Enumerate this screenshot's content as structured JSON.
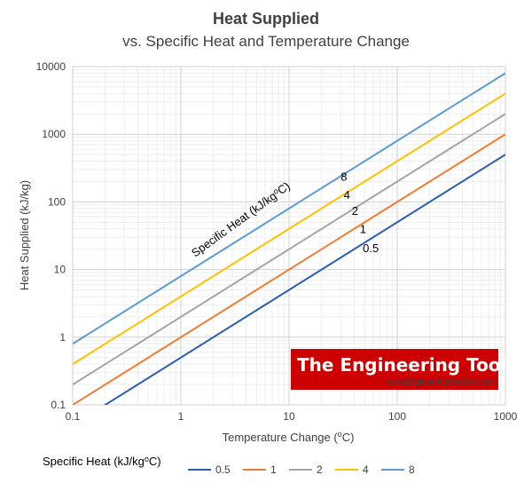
{
  "chart_data": {
    "type": "line",
    "title": "Heat Supplied",
    "subtitle": "vs. Specific Heat and Temperature Change",
    "xlabel": "Temperature Change (",
    "xlabel_unit": "C)",
    "ylabel": "Heat Supplied (kJ/kg)",
    "xscale": "log",
    "yscale": "log",
    "xlim": [
      0.1,
      1000
    ],
    "ylim": [
      0.1,
      10000
    ],
    "grid": true,
    "x_ticks": [
      0.1,
      1,
      10,
      100,
      1000
    ],
    "x_tick_labels": [
      "0.1",
      "1",
      "10",
      "100",
      "1000"
    ],
    "y_ticks": [
      0.1,
      1,
      10,
      100,
      1000,
      10000
    ],
    "y_tick_labels": [
      "0.1",
      "1",
      "10",
      "100",
      "1000",
      "10000"
    ],
    "series": [
      {
        "name": "0.5",
        "color": "#2a5fb0",
        "points": [
          [
            0.1,
            0.05
          ],
          [
            1000,
            500
          ]
        ]
      },
      {
        "name": "1",
        "color": "#ec7d31",
        "points": [
          [
            0.1,
            0.1
          ],
          [
            1000,
            1000
          ]
        ]
      },
      {
        "name": "2",
        "color": "#a5a5a5",
        "points": [
          [
            0.1,
            0.2
          ],
          [
            1000,
            2000
          ]
        ]
      },
      {
        "name": "4",
        "color": "#ffc000",
        "points": [
          [
            0.1,
            0.4
          ],
          [
            1000,
            4000
          ]
        ]
      },
      {
        "name": "8",
        "color": "#5b9bd5",
        "points": [
          [
            0.1,
            0.8
          ],
          [
            1000,
            8000
          ]
        ]
      }
    ],
    "annotation_title": "Specific Heat (kJ/kg",
    "annotation_title_unit": "C)",
    "annotations": [
      {
        "text": "8",
        "x": 30,
        "y": 240
      },
      {
        "text": "4",
        "x": 32,
        "y": 128
      },
      {
        "text": "2",
        "x": 38,
        "y": 75
      },
      {
        "text": "1",
        "x": 45,
        "y": 40
      },
      {
        "text": "0.5",
        "x": 48,
        "y": 21
      }
    ],
    "legend_title": "Specific Heat (kJ/kg",
    "legend_title_unit": "C)",
    "legend_position": "bottom"
  },
  "watermark": {
    "name": "The Engineering ToolBox",
    "url": "www.EngineeringToolBox.com",
    "color": "#cc0000"
  }
}
